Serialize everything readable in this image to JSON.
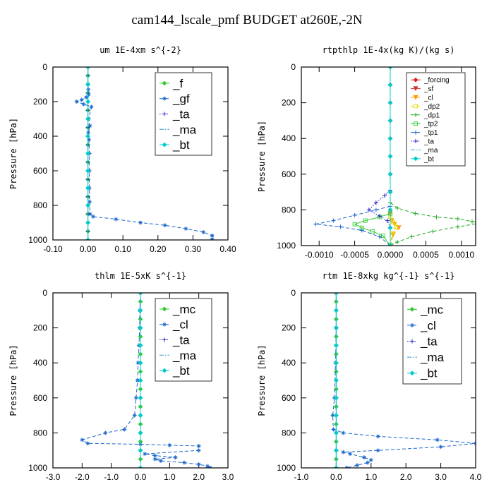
{
  "page": {
    "title": "cam144_lscale_pmf  BUDGET at260E,-2N"
  },
  "chart_data": [
    {
      "type": "line",
      "title": "um   1E-4xm s^{-2}",
      "ylabel": "Pressure [hPa]",
      "xlim": [
        -0.1,
        0.4
      ],
      "ylim": [
        1000,
        0
      ],
      "xticks": [
        -0.1,
        0.0,
        0.1,
        0.2,
        0.3,
        0.4
      ],
      "xtick_labels": [
        "-0.10",
        "0.00",
        "0.10",
        "0.20",
        "0.30",
        "0.40"
      ],
      "yticks": [
        0,
        200,
        400,
        600,
        800,
        1000
      ],
      "ytick_labels": [
        "0",
        "200",
        "400",
        "600",
        "800",
        "1000"
      ],
      "legend_position": "top-right",
      "series": [
        {
          "name": "_f",
          "color": "#33cc33",
          "style": "solid",
          "marker": "diamond",
          "x": [
            0,
            0,
            0,
            0,
            0,
            0,
            0,
            0,
            0,
            0,
            0,
            0,
            0,
            0,
            0,
            0,
            0,
            0,
            0,
            0,
            0
          ],
          "y": [
            0,
            50,
            100,
            150,
            200,
            250,
            300,
            350,
            400,
            450,
            500,
            550,
            600,
            650,
            700,
            750,
            800,
            850,
            900,
            950,
            1000
          ]
        },
        {
          "name": "_gf",
          "color": "#1a66cc",
          "style": "dash",
          "marker": "star",
          "x": [
            0,
            0.001,
            0.002,
            -0.005,
            -0.018,
            -0.032,
            -0.012,
            0.01,
            0.002,
            0.006,
            0.001,
            0.003,
            0.004,
            0.004,
            0.004,
            0.005,
            0.006,
            0.015,
            0.08,
            0.15,
            0.22,
            0.28,
            0.33,
            0.355,
            0.355
          ],
          "y": [
            100,
            130,
            160,
            175,
            190,
            200,
            215,
            230,
            300,
            340,
            380,
            420,
            500,
            600,
            700,
            780,
            850,
            865,
            880,
            900,
            915,
            935,
            955,
            975,
            995
          ]
        },
        {
          "name": "_ta",
          "color": "#2222cc",
          "style": "dot",
          "marker": "plus",
          "x": [
            0,
            0,
            0,
            0,
            0,
            0,
            0,
            0,
            0,
            0,
            0,
            0,
            0,
            0,
            0,
            0,
            0,
            0,
            0,
            0,
            0
          ],
          "y": [
            0,
            50,
            100,
            150,
            200,
            250,
            300,
            350,
            400,
            450,
            500,
            550,
            600,
            650,
            700,
            750,
            800,
            850,
            900,
            950,
            1000
          ]
        },
        {
          "name": "_ma",
          "color": "#3399cc",
          "style": "dashdot",
          "marker": "none",
          "x": [
            0,
            0
          ],
          "y": [
            0,
            1000
          ]
        },
        {
          "name": "_bt",
          "color": "#00cccc",
          "style": "solid",
          "marker": "diamond",
          "x": [
            0,
            0,
            0,
            0,
            0,
            0,
            0,
            0,
            0,
            0,
            0
          ],
          "y": [
            0,
            100,
            200,
            300,
            400,
            500,
            600,
            700,
            800,
            900,
            1000
          ]
        }
      ]
    },
    {
      "type": "line",
      "title": "rtpthlp   1E-4x(kg K)/(kg s)",
      "ylabel": "Pressure [hPa]",
      "xlim": [
        -0.00125,
        0.0012
      ],
      "ylim": [
        1000,
        0
      ],
      "xticks": [
        -0.001,
        -0.0005,
        0.0,
        0.0005,
        0.001
      ],
      "xtick_labels": [
        "-0.0010",
        "-0.0005",
        "0.0000",
        "0.0005",
        "0.0010"
      ],
      "yticks": [
        0,
        200,
        400,
        600,
        800,
        1000
      ],
      "ytick_labels": [
        "0",
        "200",
        "400",
        "600",
        "800",
        "1000"
      ],
      "legend_position": "top-right",
      "series": [
        {
          "name": "_forcing",
          "color": "#dd2222",
          "style": "solid",
          "marker": "diamond",
          "x": [
            0,
            0,
            0,
            0,
            0,
            0,
            0,
            0,
            0,
            0,
            0
          ],
          "y": [
            0,
            100,
            200,
            300,
            400,
            500,
            600,
            700,
            800,
            900,
            1000
          ]
        },
        {
          "name": "_sf",
          "color": "#cc3333",
          "style": "solid",
          "marker": "triangle",
          "x": [
            0,
            0
          ],
          "y": [
            0,
            1000
          ]
        },
        {
          "name": "_cl",
          "color": "#ff9900",
          "style": "dash",
          "marker": "triangle",
          "x": [
            0,
            2e-05,
            6e-05,
            0.00012,
            4e-05,
            0
          ],
          "y": [
            820,
            860,
            880,
            900,
            940,
            1000
          ]
        },
        {
          "name": "_dp2",
          "color": "#dddd00",
          "style": "dash",
          "marker": "square",
          "x": [
            0,
            4e-05,
            8e-05,
            3e-05,
            0
          ],
          "y": [
            840,
            870,
            895,
            930,
            1000
          ]
        },
        {
          "name": "_dp1",
          "color": "#22aa22",
          "style": "dash",
          "marker": "plus",
          "x": [
            0,
            0.0001,
            0.00035,
            0.00065,
            0.00095,
            0.00115,
            0.00125,
            0.00095,
            0.0006,
            0.0003,
            0.0001,
            0
          ],
          "y": [
            760,
            790,
            820,
            840,
            850,
            865,
            875,
            895,
            920,
            950,
            980,
            1000
          ]
        },
        {
          "name": "_tp2",
          "color": "#33cc33",
          "style": "solid",
          "marker": "square",
          "x": [
            0,
            -0.00015,
            -0.00035,
            -0.0005,
            -0.0004,
            -0.00025,
            -0.0001,
            0
          ],
          "y": [
            820,
            840,
            860,
            880,
            900,
            920,
            945,
            1000
          ]
        },
        {
          "name": "_tp1",
          "color": "#1a66cc",
          "style": "dash",
          "marker": "plus",
          "x": [
            0,
            -0.0002,
            -0.0005,
            -0.0008,
            -0.00105,
            -0.0007,
            -0.0004,
            -0.00015,
            0
          ],
          "y": [
            780,
            800,
            830,
            860,
            880,
            895,
            915,
            950,
            1000
          ]
        },
        {
          "name": "_ta",
          "color": "#2222cc",
          "style": "dot",
          "marker": "plus",
          "x": [
            0,
            -8e-05,
            -0.0002,
            -0.0003,
            -0.00015,
            -4e-05,
            0
          ],
          "y": [
            690,
            720,
            760,
            800,
            835,
            860,
            900
          ]
        },
        {
          "name": "_ma",
          "color": "#3399cc",
          "style": "dashdot",
          "marker": "none",
          "x": [
            0,
            0
          ],
          "y": [
            0,
            1000
          ]
        },
        {
          "name": "_bt",
          "color": "#00cccc",
          "style": "solid",
          "marker": "diamond",
          "x": [
            0,
            0,
            0,
            0,
            0,
            0,
            0,
            0,
            0,
            0,
            0
          ],
          "y": [
            0,
            100,
            200,
            300,
            400,
            500,
            600,
            700,
            800,
            900,
            1000
          ]
        }
      ]
    },
    {
      "type": "line",
      "title": "thlm   1E-5xK s^{-1}",
      "ylabel": "Pressure [hPa]",
      "xlim": [
        -3.0,
        3.0
      ],
      "ylim": [
        1000,
        0
      ],
      "xticks": [
        -3,
        -2,
        -1,
        0,
        1,
        2,
        3
      ],
      "xtick_labels": [
        "-3.0",
        "-2.0",
        "-1.0",
        "0.0",
        "1.0",
        "2.0",
        "3.0"
      ],
      "yticks": [
        0,
        200,
        400,
        600,
        800,
        1000
      ],
      "ytick_labels": [
        "0",
        "200",
        "400",
        "600",
        "800",
        "1000"
      ],
      "legend_position": "top-right",
      "series": [
        {
          "name": "_mc",
          "color": "#33cc33",
          "style": "solid",
          "marker": "diamond",
          "x": [
            0,
            0,
            0,
            0,
            0,
            0,
            0,
            0,
            0,
            0,
            0,
            0,
            0,
            0,
            0,
            0,
            0,
            0,
            0,
            0,
            0
          ],
          "y": [
            0,
            50,
            100,
            150,
            200,
            250,
            300,
            350,
            400,
            450,
            500,
            550,
            600,
            650,
            700,
            750,
            800,
            850,
            900,
            950,
            1000
          ]
        },
        {
          "name": "_cl",
          "color": "#1a66cc",
          "style": "dash",
          "marker": "star",
          "x": [
            0,
            -0.02,
            -0.03,
            -0.05,
            -0.08,
            -0.1,
            -0.15,
            -0.2,
            -0.55,
            -1.2,
            -2.0,
            -1.8,
            0,
            1.0,
            2.0,
            2.0,
            0.15,
            0.5,
            1.2,
            0.5,
            0.7,
            1.5,
            2.0,
            2.3,
            2.4
          ],
          "y": [
            0,
            100,
            200,
            300,
            400,
            500,
            600,
            700,
            780,
            800,
            840,
            860,
            865,
            870,
            875,
            900,
            920,
            930,
            940,
            950,
            960,
            970,
            980,
            990,
            1000
          ]
        },
        {
          "name": "_ta",
          "color": "#2222cc",
          "style": "dot",
          "marker": "plus",
          "x": [
            0,
            0,
            0,
            0,
            0,
            0,
            0,
            0,
            0,
            0,
            0
          ],
          "y": [
            0,
            100,
            200,
            300,
            400,
            500,
            600,
            700,
            800,
            900,
            1000
          ]
        },
        {
          "name": "_ma",
          "color": "#3399cc",
          "style": "dashdot",
          "marker": "none",
          "x": [
            0,
            0
          ],
          "y": [
            0,
            1000
          ]
        },
        {
          "name": "_bt",
          "color": "#00cccc",
          "style": "solid",
          "marker": "diamond",
          "x": [
            0,
            0,
            0,
            0,
            0,
            0,
            0,
            0,
            0,
            0,
            0
          ],
          "y": [
            0,
            100,
            200,
            300,
            400,
            500,
            600,
            700,
            800,
            900,
            1000
          ]
        }
      ]
    },
    {
      "type": "line",
      "title": "rtm   1E-8xkg kg^{-1} s^{-1}",
      "ylabel": "Pressure [hPa]",
      "xlim": [
        -1.0,
        4.0
      ],
      "ylim": [
        1000,
        0
      ],
      "xticks": [
        -1,
        0,
        1,
        2,
        3,
        4
      ],
      "xtick_labels": [
        "-1.0",
        "0.0",
        "1.0",
        "2.0",
        "3.0",
        "4.0"
      ],
      "yticks": [
        0,
        200,
        400,
        600,
        800,
        1000
      ],
      "ytick_labels": [
        "0",
        "200",
        "400",
        "600",
        "800",
        "1000"
      ],
      "legend_position": "top-right",
      "series": [
        {
          "name": "_mc",
          "color": "#33cc33",
          "style": "solid",
          "marker": "diamond",
          "x": [
            0,
            0,
            0,
            0,
            0,
            0,
            0,
            0,
            0,
            0,
            0,
            0,
            0,
            0,
            0,
            0,
            0,
            0,
            0,
            0,
            0
          ],
          "y": [
            0,
            50,
            100,
            150,
            200,
            250,
            300,
            350,
            400,
            450,
            500,
            550,
            600,
            650,
            700,
            750,
            800,
            850,
            900,
            950,
            1000
          ]
        },
        {
          "name": "_cl",
          "color": "#1a66cc",
          "style": "dash",
          "marker": "star",
          "x": [
            0,
            0,
            -0.02,
            -0.05,
            -0.1,
            -0.08,
            0.2,
            1.2,
            2.9,
            4.0,
            3.0,
            1.2,
            0.2,
            0.4,
            0.8,
            1.0,
            0.9,
            0.6,
            0.3
          ],
          "y": [
            0,
            200,
            400,
            600,
            700,
            780,
            800,
            820,
            840,
            860,
            880,
            900,
            910,
            920,
            940,
            955,
            970,
            985,
            1000
          ]
        },
        {
          "name": "_ta",
          "color": "#2222cc",
          "style": "dot",
          "marker": "plus",
          "x": [
            0,
            0,
            0,
            0,
            0,
            0,
            0,
            0,
            0,
            0,
            0
          ],
          "y": [
            0,
            100,
            200,
            300,
            400,
            500,
            600,
            700,
            800,
            900,
            1000
          ]
        },
        {
          "name": "_ma",
          "color": "#3399cc",
          "style": "dashdot",
          "marker": "none",
          "x": [
            0,
            0
          ],
          "y": [
            0,
            1000
          ]
        },
        {
          "name": "_bt",
          "color": "#00cccc",
          "style": "solid",
          "marker": "diamond",
          "x": [
            0,
            0,
            0,
            0,
            0,
            0,
            0,
            0,
            0,
            0,
            0
          ],
          "y": [
            0,
            100,
            200,
            300,
            400,
            500,
            600,
            700,
            800,
            900,
            1000
          ]
        }
      ]
    }
  ]
}
